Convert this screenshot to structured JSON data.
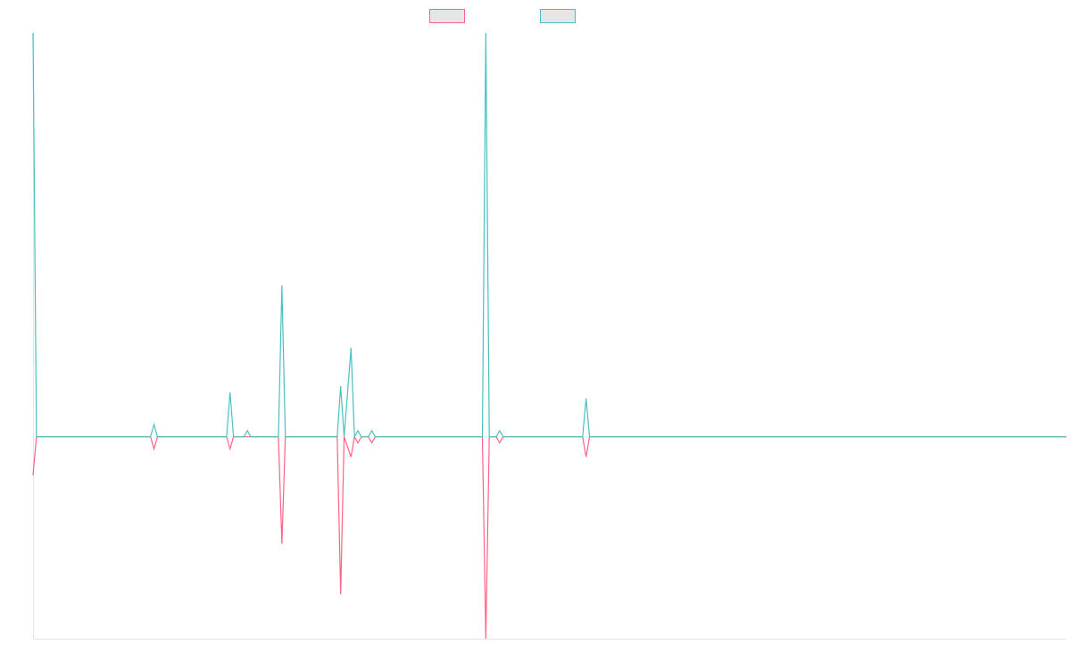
{
  "chart_data": {
    "type": "line",
    "x": [
      0,
      1,
      34,
      35,
      36,
      56,
      57,
      58,
      61,
      62,
      63,
      71,
      72,
      73,
      88,
      89,
      90,
      92,
      93,
      94,
      95,
      97,
      98,
      99,
      130,
      131,
      132,
      134,
      135,
      136,
      159,
      160,
      161,
      299
    ],
    "xlim": [
      0,
      299
    ],
    "ylim": [
      -1,
      2
    ],
    "series": [
      {
        "color": "#ff6384",
        "values": [
          -0.19,
          0,
          0,
          -0.06,
          0,
          0,
          -0.06,
          0,
          0,
          0,
          0,
          0,
          -0.53,
          0,
          0,
          -0.78,
          0,
          -0.1,
          0,
          -0.03,
          0,
          0,
          -0.03,
          0,
          0,
          -1,
          0,
          0,
          -0.03,
          0,
          0,
          -0.1,
          0,
          0
        ]
      },
      {
        "color": "#4bc0c0",
        "values": [
          2,
          0,
          0,
          0.06,
          0,
          0,
          0.22,
          0,
          0,
          0.03,
          0,
          0,
          0.75,
          0,
          0,
          0.25,
          0,
          0.44,
          0,
          0.03,
          0,
          0,
          0.03,
          0,
          0,
          2,
          0,
          0,
          0.03,
          0,
          0,
          0.19,
          0,
          0
        ]
      }
    ]
  }
}
